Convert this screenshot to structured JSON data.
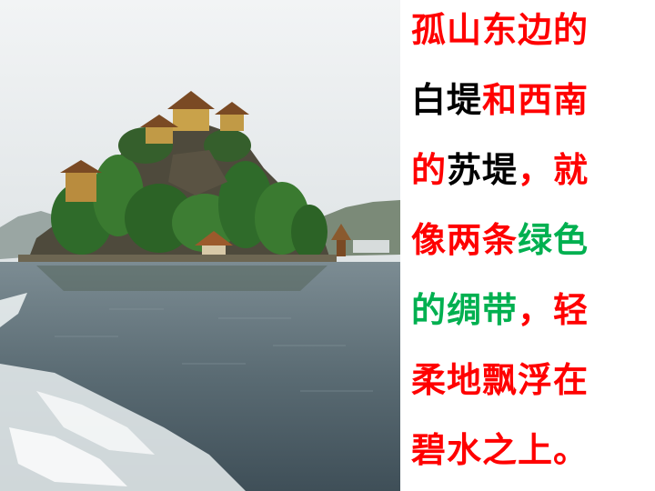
{
  "scene": {
    "description_icon": "island-temple-photo",
    "colors": {
      "sky": "#e8ecee",
      "water": "#5d6f78",
      "foliage": "#2f6b2a",
      "rock": "#4e4a3c",
      "roof": "#8a5a2e"
    }
  },
  "poem": {
    "colors": {
      "red": "#ff0000",
      "black": "#000000",
      "green": "#00b050"
    },
    "lines": [
      [
        {
          "text": "孤山东边的",
          "color": "red"
        }
      ],
      [
        {
          "text": "白堤",
          "color": "black"
        },
        {
          "text": "和西南",
          "color": "red"
        }
      ],
      [
        {
          "text": "的",
          "color": "red"
        },
        {
          "text": "苏堤",
          "color": "black"
        },
        {
          "text": "，就",
          "color": "red"
        }
      ],
      [
        {
          "text": "像两条",
          "color": "red"
        },
        {
          "text": "绿色",
          "color": "green"
        }
      ],
      [
        {
          "text": "的绸带",
          "color": "green"
        },
        {
          "text": "，轻",
          "color": "red"
        }
      ],
      [
        {
          "text": "柔地飘浮在",
          "color": "red"
        }
      ],
      [
        {
          "text": "碧水之上。",
          "color": "red"
        }
      ]
    ]
  }
}
